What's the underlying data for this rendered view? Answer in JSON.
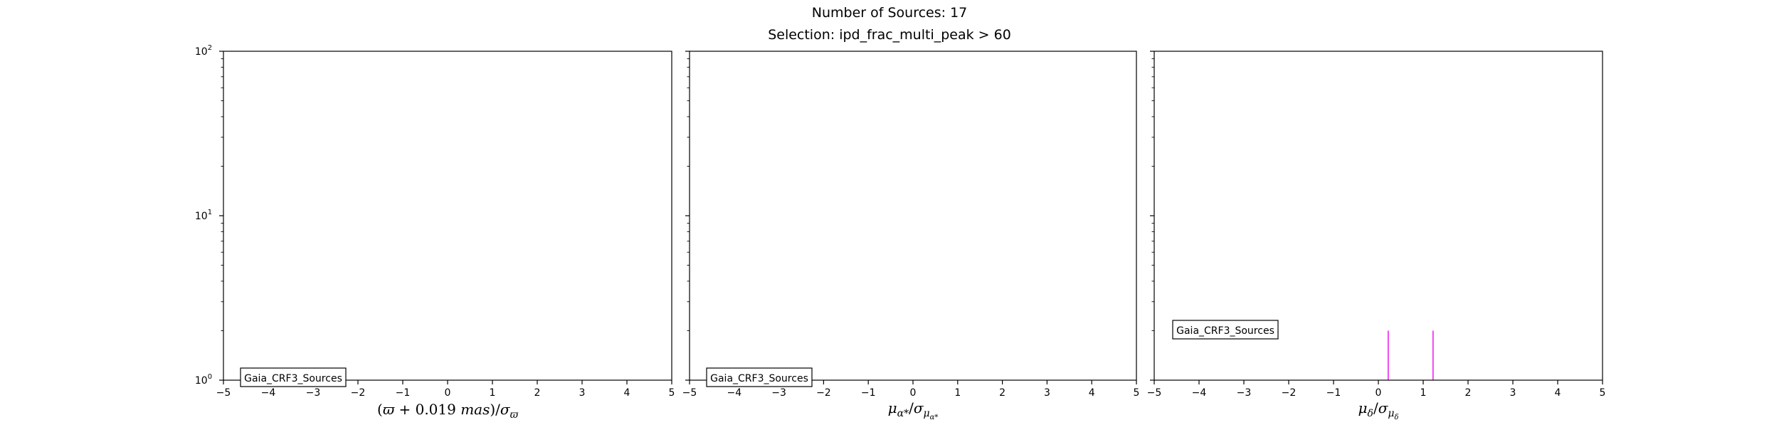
{
  "figure": {
    "title_line1": "Number of Sources: 17",
    "title_line2": "Selection: ipd_frac_multi_peak > 60"
  },
  "chart_data": [
    {
      "type": "histogram",
      "xlim": [
        -5,
        5
      ],
      "ylim": [
        1,
        100
      ],
      "yscale": "log",
      "xticks": [
        -5,
        -4,
        -3,
        -2,
        -1,
        0,
        1,
        2,
        3,
        4,
        5
      ],
      "xtick_labels": [
        "−5",
        "−4",
        "−3",
        "−2",
        "−1",
        "0",
        "1",
        "2",
        "3",
        "4",
        "5"
      ],
      "yticks": [
        1,
        10,
        100
      ],
      "ytick_labels": [
        {
          "base": "10",
          "exp": "0"
        },
        {
          "base": "10",
          "exp": "1"
        },
        {
          "base": "10",
          "exp": "2"
        }
      ],
      "xlabel": "(ϖ + 0.019 mas)/σϖ",
      "legend": "Gaia_CRF3_Sources",
      "legend_loc": "lower-left",
      "grid": false,
      "bars": []
    },
    {
      "type": "histogram",
      "xlim": [
        -5,
        5
      ],
      "ylim": [
        1,
        100
      ],
      "yscale": "log",
      "xticks": [
        -5,
        -4,
        -3,
        -2,
        -1,
        0,
        1,
        2,
        3,
        4,
        5
      ],
      "xtick_labels": [
        "−5",
        "−4",
        "−3",
        "−2",
        "−1",
        "0",
        "1",
        "2",
        "3",
        "4",
        "5"
      ],
      "yticks": [
        1,
        10,
        100
      ],
      "ytick_labels": [],
      "xlabel": "μα*/σμα*",
      "legend": "Gaia_CRF3_Sources",
      "legend_loc": "lower-left",
      "grid": false,
      "bars": []
    },
    {
      "type": "histogram",
      "xlim": [
        -5,
        5
      ],
      "ylim": [
        1,
        100
      ],
      "yscale": "log",
      "xticks": [
        -5,
        -4,
        -3,
        -2,
        -1,
        0,
        1,
        2,
        3,
        4,
        5
      ],
      "xtick_labels": [
        "−5",
        "−4",
        "−3",
        "−2",
        "−1",
        "0",
        "1",
        "2",
        "3",
        "4",
        "5"
      ],
      "yticks": [
        1,
        10,
        100
      ],
      "ytick_labels": [],
      "xlabel": "μδ/σμδ",
      "legend": "Gaia_CRF3_Sources",
      "legend_loc": "lower-left",
      "grid": false,
      "bars": [
        {
          "x": 0.22,
          "count": 2
        },
        {
          "x": 1.22,
          "count": 2
        }
      ],
      "bar_color": "#ee00ee"
    }
  ]
}
